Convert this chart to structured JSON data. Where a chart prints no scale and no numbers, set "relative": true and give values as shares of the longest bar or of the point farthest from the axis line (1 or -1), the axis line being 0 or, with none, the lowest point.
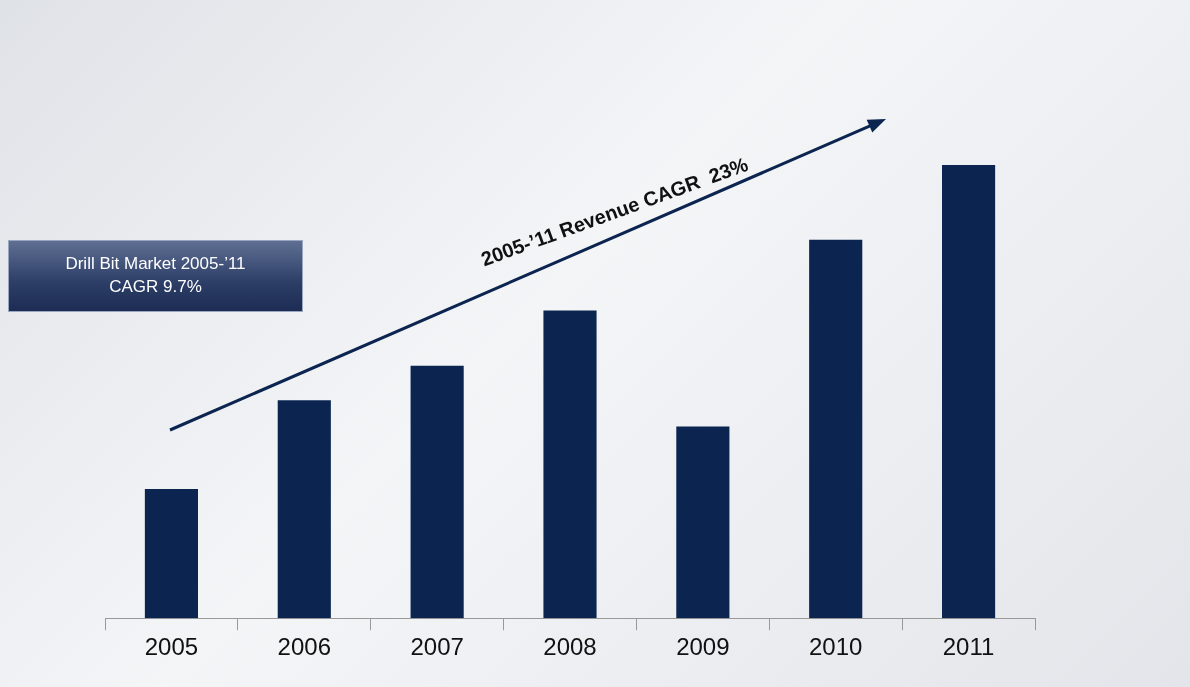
{
  "chart_data": {
    "type": "bar",
    "relative": true,
    "categories": [
      "2005",
      "2006",
      "2007",
      "2008",
      "2009",
      "2010",
      "2011"
    ],
    "values": [
      0.285,
      0.481,
      0.557,
      0.679,
      0.423,
      0.835,
      1
    ],
    "color": "#0b2550",
    "grid": false,
    "legend": false,
    "annotations": [
      "2005-’11 Revenue CAGR  23%",
      "Drill Bit Market 2005-’11\nCAGR 9.7%"
    ]
  }
}
